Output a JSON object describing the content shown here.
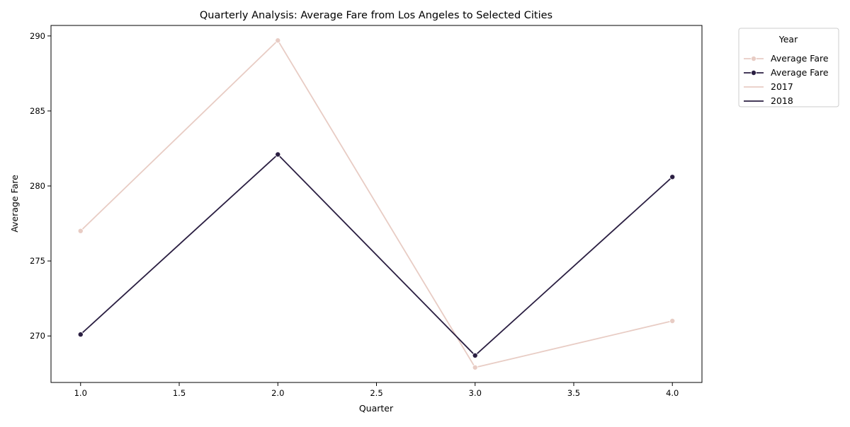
{
  "chart_data": {
    "type": "line",
    "title": "Quarterly Analysis: Average Fare from Los Angeles to Selected Cities",
    "xlabel": "Quarter",
    "ylabel": "Average Fare",
    "xlim": [
      0.85,
      4.15
    ],
    "ylim": [
      266.9,
      290.7
    ],
    "x_ticks": [
      1.0,
      1.5,
      2.0,
      2.5,
      3.0,
      3.5,
      4.0
    ],
    "x_tick_labels": [
      "1.0",
      "1.5",
      "2.0",
      "2.5",
      "3.0",
      "3.5",
      "4.0"
    ],
    "y_ticks": [
      270,
      275,
      280,
      285,
      290
    ],
    "y_tick_labels": [
      "270",
      "275",
      "280",
      "285",
      "290"
    ],
    "grid": false,
    "legend": {
      "title": "Year",
      "placement": "outside-top-right",
      "entries": [
        {
          "label": "Average Fare",
          "color": "#e8ccc4",
          "marker": true
        },
        {
          "label": "Average Fare",
          "color": "#2b1f42",
          "marker": true
        },
        {
          "label": "2017",
          "color": "#e8ccc4",
          "marker": false
        },
        {
          "label": "2018",
          "color": "#2b1f42",
          "marker": false
        }
      ]
    },
    "series": [
      {
        "name": "2017",
        "color": "#e8ccc4",
        "x": [
          1,
          2,
          3,
          4
        ],
        "values": [
          277.0,
          289.7,
          267.9,
          271.0
        ]
      },
      {
        "name": "2018",
        "color": "#2b1f42",
        "x": [
          1,
          2,
          3,
          4
        ],
        "values": [
          270.1,
          282.1,
          268.7,
          280.6
        ]
      }
    ]
  }
}
